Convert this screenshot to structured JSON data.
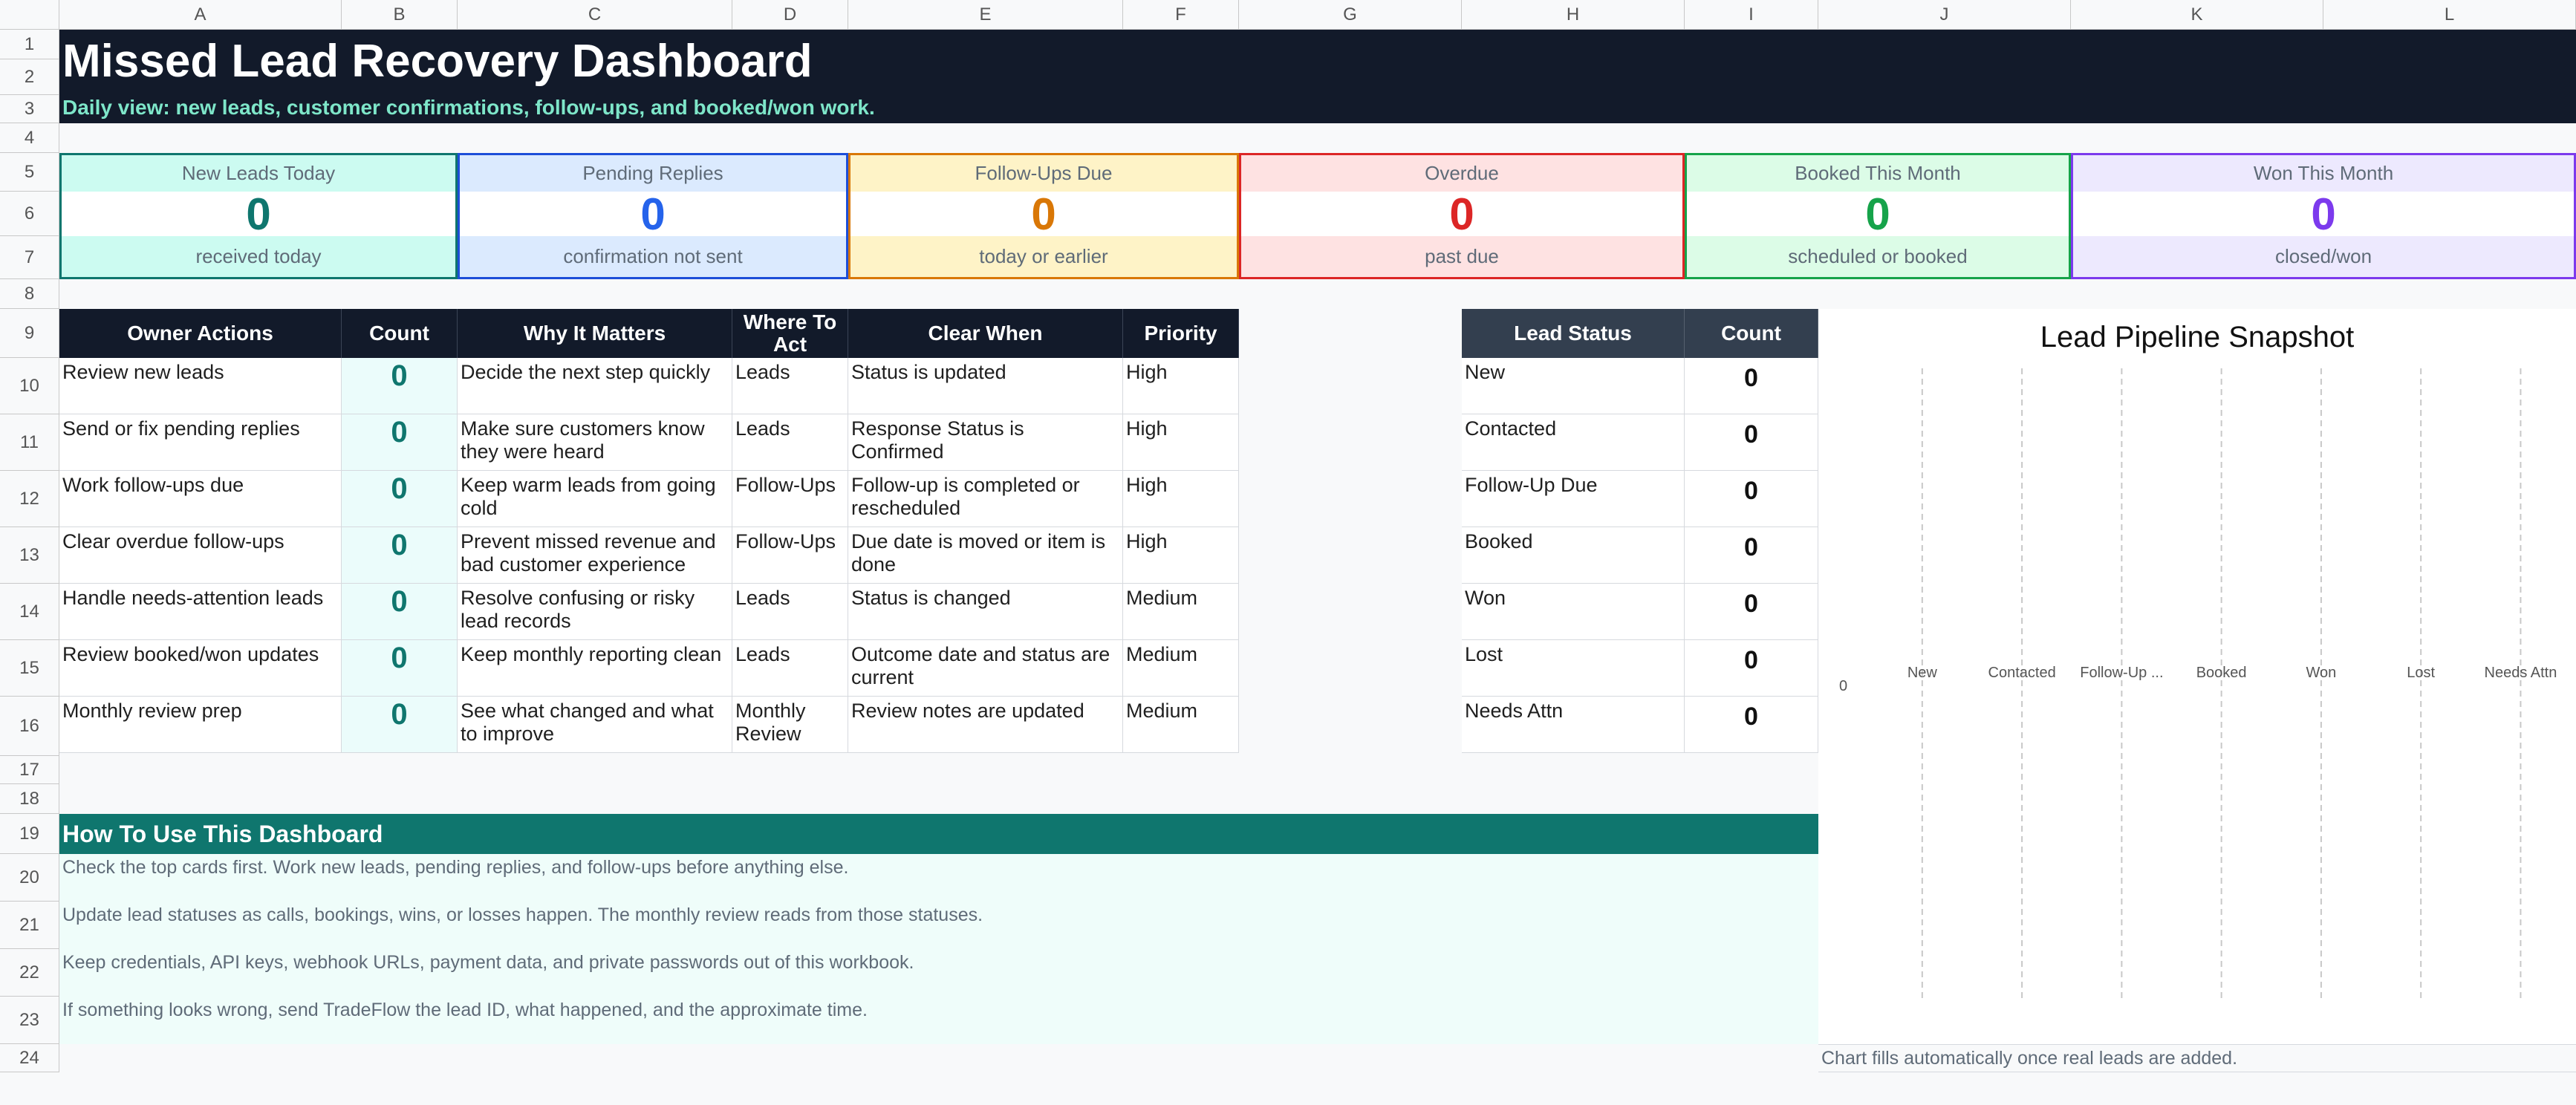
{
  "columns": [
    "A",
    "B",
    "C",
    "D",
    "E",
    "F",
    "G",
    "H",
    "I",
    "J",
    "K",
    "L"
  ],
  "rows": [
    "1",
    "2",
    "3",
    "4",
    "5",
    "6",
    "7",
    "8",
    "9",
    "10",
    "11",
    "12",
    "13",
    "14",
    "15",
    "16",
    "17",
    "18",
    "19",
    "20",
    "21",
    "22",
    "23",
    "24"
  ],
  "header": {
    "title": "Missed Lead Recovery Dashboard",
    "subtitle": "Daily view: new leads, customer confirmations, follow-ups, and booked/won work."
  },
  "kpis": [
    {
      "label": "New Leads Today",
      "value": "0",
      "caption": "received today",
      "color": "#0f766e",
      "bg": "#ccfbf1",
      "border": "#0f766e"
    },
    {
      "label": "Pending Replies",
      "value": "0",
      "caption": "confirmation not sent",
      "color": "#2563eb",
      "bg": "#dbeafe",
      "border": "#1d4ed8"
    },
    {
      "label": "Follow-Ups Due",
      "value": "0",
      "caption": "today or earlier",
      "color": "#d97706",
      "bg": "#fef3c7",
      "border": "#d97706"
    },
    {
      "label": "Overdue",
      "value": "0",
      "caption": "past due",
      "color": "#dc2626",
      "bg": "#fee2e2",
      "border": "#dc2626"
    },
    {
      "label": "Booked This Month",
      "value": "0",
      "caption": "scheduled or booked",
      "color": "#16a34a",
      "bg": "#dcfce7",
      "border": "#16a34a"
    },
    {
      "label": "Won This Month",
      "value": "0",
      "caption": "closed/won",
      "color": "#7c3aed",
      "bg": "#ede9fe",
      "border": "#7c3aed"
    }
  ],
  "actions_table": {
    "headers": [
      "Owner Actions",
      "Count",
      "Why It Matters",
      "Where To Act",
      "Clear When",
      "Priority"
    ],
    "rows": [
      {
        "action": "Review new leads",
        "count": "0",
        "why": "Decide the next step quickly",
        "where": "Leads",
        "clear": "Status is updated",
        "priority": "High"
      },
      {
        "action": "Send or fix pending replies",
        "count": "0",
        "why": "Make sure customers know they were heard",
        "where": "Leads",
        "clear": "Response Status is Confirmed",
        "priority": "High"
      },
      {
        "action": "Work follow-ups due",
        "count": "0",
        "why": "Keep warm leads from going cold",
        "where": "Follow-Ups",
        "clear": "Follow-up is completed or rescheduled",
        "priority": "High"
      },
      {
        "action": "Clear overdue follow-ups",
        "count": "0",
        "why": "Prevent missed revenue and bad customer experience",
        "where": "Follow-Ups",
        "clear": "Due date is moved or item is done",
        "priority": "High"
      },
      {
        "action": "Handle needs-attention leads",
        "count": "0",
        "why": "Resolve confusing or risky lead records",
        "where": "Leads",
        "clear": "Status is changed",
        "priority": "Medium"
      },
      {
        "action": "Review booked/won updates",
        "count": "0",
        "why": "Keep monthly reporting clean",
        "where": "Leads",
        "clear": "Outcome date and status are current",
        "priority": "Medium"
      },
      {
        "action": "Monthly review prep",
        "count": "0",
        "why": "See what changed and what to improve",
        "where": "Monthly Review",
        "clear": "Review notes are updated",
        "priority": "Medium"
      }
    ]
  },
  "status_table": {
    "headers": [
      "Lead Status",
      "Count"
    ],
    "rows": [
      {
        "status": "New",
        "count": "0"
      },
      {
        "status": "Contacted",
        "count": "0"
      },
      {
        "status": "Follow-Up Due",
        "count": "0"
      },
      {
        "status": "Booked",
        "count": "0"
      },
      {
        "status": "Won",
        "count": "0"
      },
      {
        "status": "Lost",
        "count": "0"
      },
      {
        "status": "Needs Attn",
        "count": "0"
      }
    ]
  },
  "howto": {
    "title": "How To Use This Dashboard",
    "lines": [
      "Check the top cards first. Work new leads, pending replies, and follow-ups before anything else.",
      "Update lead statuses as calls, bookings, wins, or losses happen. The monthly review reads from those statuses.",
      "Keep credentials, API keys, webhook URLs, payment data, and private passwords out of this workbook.",
      "If something looks wrong, send TradeFlow the lead ID, what happened, and the approximate time."
    ]
  },
  "chart_data": {
    "type": "bar",
    "title": "Lead Pipeline Snapshot",
    "categories": [
      "New",
      "Contacted",
      "Follow-Up ...",
      "Booked",
      "Won",
      "Lost",
      "Needs Attn"
    ],
    "values": [
      0,
      0,
      0,
      0,
      0,
      0,
      0
    ],
    "y_tick_labels": [
      "0"
    ],
    "grid": true
  },
  "chart_note": "Chart fills automatically once real leads are added."
}
